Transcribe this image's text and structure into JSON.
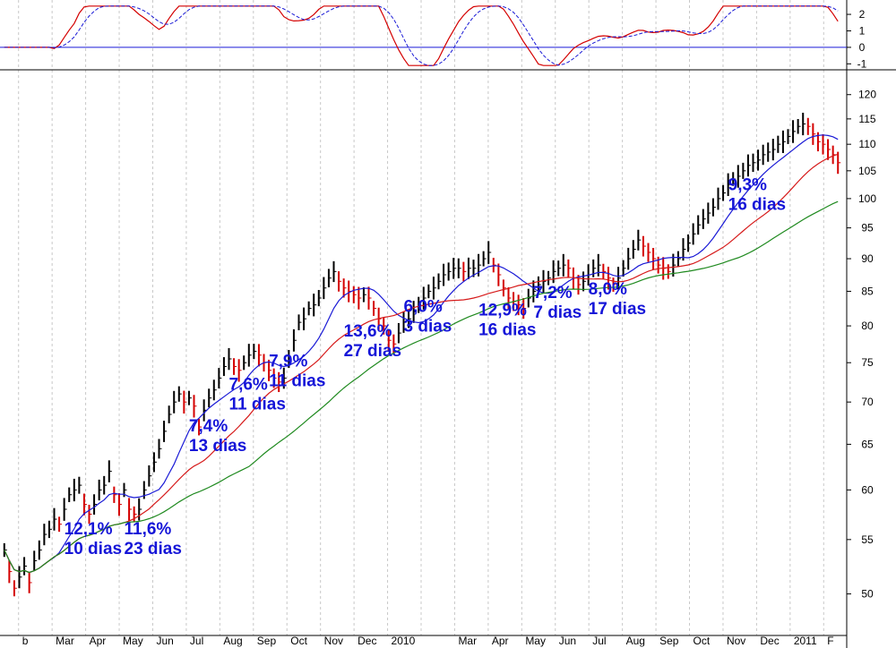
{
  "chart_data": {
    "type": "line",
    "x_tick_labels": [
      "b",
      "Mar",
      "Apr",
      "May",
      "Jun",
      "Jul",
      "Aug",
      "Sep",
      "Oct",
      "Nov",
      "Dec",
      "2010",
      "",
      "Mar",
      "Apr",
      "May",
      "Jun",
      "Jul",
      "Aug",
      "Sep",
      "Oct",
      "Nov",
      "Dec",
      "2011",
      "F"
    ],
    "price_axis": {
      "scale": "log",
      "ylim": [
        47,
        123
      ],
      "ticks": [
        50,
        55,
        60,
        65,
        70,
        75,
        80,
        85,
        90,
        95,
        100,
        105,
        110,
        115,
        120
      ]
    },
    "oscillator_axis": {
      "ylim": [
        -1.2,
        2.6
      ],
      "ticks": [
        2,
        1,
        0,
        -1
      ]
    },
    "price_series": {
      "name": "",
      "color": "#cc0000",
      "values": [
        54,
        52,
        50.5,
        51.5,
        52.5,
        51,
        53,
        54,
        55.5,
        56,
        57,
        56.5,
        58,
        59.5,
        60,
        60.5,
        58.5,
        57.5,
        58.5,
        60,
        60.5,
        62,
        59.5,
        58.5,
        60,
        58,
        57.5,
        58,
        60,
        61.5,
        63,
        64.5,
        66.5,
        68.5,
        70,
        71,
        70,
        70.5,
        69.5,
        67,
        69,
        70.5,
        71.5,
        73,
        74.5,
        75.5,
        74.5,
        74,
        75,
        76,
        76.5,
        76,
        75,
        74,
        73,
        72.5,
        73,
        75.5,
        78,
        80.5,
        81,
        82.5,
        83,
        84,
        85.5,
        87,
        88,
        86.5,
        85.5,
        85,
        84.5,
        84,
        84.5,
        84,
        82.5,
        81,
        80,
        78,
        77.5,
        79,
        80.5,
        81,
        82,
        83,
        84,
        85,
        85.5,
        86.5,
        87.5,
        88,
        88.5,
        88.5,
        88,
        88.5,
        88.5,
        89,
        90,
        91,
        89,
        87.5,
        85.5,
        84,
        83.5,
        83,
        82.5,
        84,
        85,
        86,
        86.5,
        87,
        88,
        88.5,
        89,
        88.5,
        87,
        86,
        86.5,
        87.5,
        88.5,
        89,
        88,
        87,
        86,
        87,
        88.5,
        90,
        91.5,
        93,
        92,
        91,
        90,
        89,
        88.5,
        88,
        89,
        90,
        91.5,
        92.5,
        94,
        95.5,
        96.5,
        97.5,
        98.5,
        100,
        101,
        102.5,
        103.5,
        104,
        105,
        106,
        106.5,
        107,
        108,
        108.5,
        109,
        110,
        110.5,
        111.5,
        112.5,
        113.5,
        114,
        113.5,
        112,
        110.5,
        110,
        109,
        108,
        106.5
      ]
    },
    "ma_series": [
      {
        "name": "",
        "color": "#1a1ad6",
        "period": 10
      },
      {
        "name": "",
        "color": "#d61a1a",
        "period": 25
      },
      {
        "name": "",
        "color": "#1f8a1f",
        "period": 50
      }
    ],
    "annotations": [
      {
        "lines": [
          "12,1%",
          "10 dias"
        ],
        "x_index": 12,
        "y_value": 55.5
      },
      {
        "lines": [
          "11,6%",
          "23 dias"
        ],
        "x_index": 24,
        "y_value": 55.5
      },
      {
        "lines": [
          "7,4%",
          "13 dias"
        ],
        "x_index": 37,
        "y_value": 66.5
      },
      {
        "lines": [
          "7,6%",
          "11 dias"
        ],
        "x_index": 45,
        "y_value": 71.5
      },
      {
        "lines": [
          "7,9%",
          "11 dias"
        ],
        "x_index": 53,
        "y_value": 74.5
      },
      {
        "lines": [
          "13,6%",
          "27 dias"
        ],
        "x_index": 68,
        "y_value": 78.5
      },
      {
        "lines": [
          "6,0%",
          "3 dias"
        ],
        "x_index": 80,
        "y_value": 82
      },
      {
        "lines": [
          "12,9%",
          "16 dias"
        ],
        "x_index": 95,
        "y_value": 81.5
      },
      {
        "lines": [
          "7,2%",
          "7 dias"
        ],
        "x_index": 106,
        "y_value": 84
      },
      {
        "lines": [
          "8,0%",
          "17 dias"
        ],
        "x_index": 117,
        "y_value": 84.5
      },
      {
        "lines": [
          "9,3%",
          "16 dias"
        ],
        "x_index": 145,
        "y_value": 101.5
      }
    ]
  }
}
